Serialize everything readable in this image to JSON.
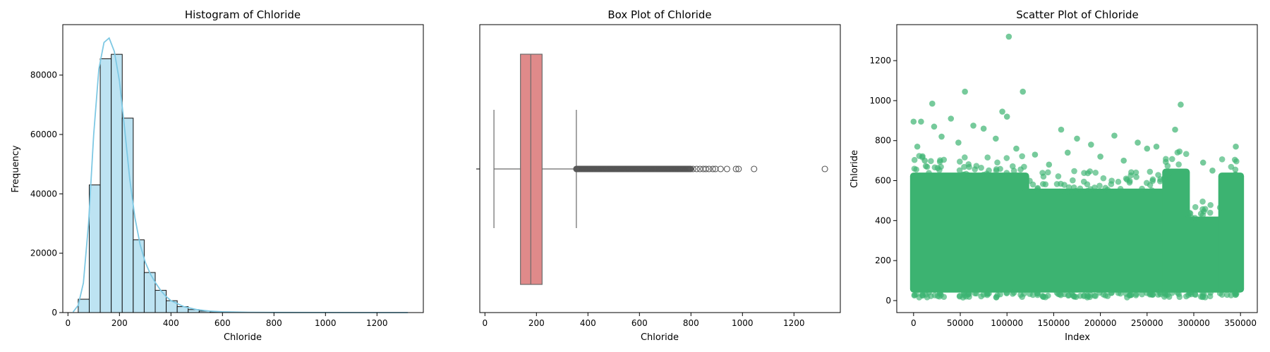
{
  "colors": {
    "hist_fill": "#bde3f2",
    "hist_edge": "#111111",
    "kde_line": "#7ec8e3",
    "box_fill": "#e08a8a",
    "box_edge": "#6b6b6b",
    "scatter": "#3cb371"
  },
  "chart_data": [
    {
      "type": "bar",
      "subtype": "histogram",
      "title": "Histogram of Chloride",
      "xlabel": "Chloride",
      "ylabel": "Frequency",
      "xlim": [
        -20,
        1380
      ],
      "ylim": [
        0,
        97000
      ],
      "xticks": [
        0,
        200,
        400,
        600,
        800,
        1000,
        1200
      ],
      "yticks": [
        0,
        20000,
        40000,
        60000,
        80000
      ],
      "bin_start": 40,
      "bin_width": 42.7,
      "values": [
        4500,
        43000,
        85500,
        87000,
        65500,
        24500,
        13500,
        7500,
        4000,
        2000,
        1000,
        500,
        300,
        150,
        100,
        60,
        40,
        25,
        15,
        10,
        8,
        5,
        4,
        3,
        2,
        2,
        1,
        1,
        1,
        1
      ],
      "kde": {
        "x": [
          20,
          40,
          60,
          80,
          100,
          120,
          140,
          160,
          180,
          200,
          220,
          240,
          260,
          280,
          300,
          320,
          340,
          360,
          380,
          400,
          450,
          500,
          550,
          600,
          700,
          800,
          1000,
          1200,
          1320
        ],
        "y": [
          200,
          2500,
          10000,
          30000,
          60000,
          82000,
          91000,
          92500,
          88000,
          78000,
          62000,
          45000,
          32000,
          23000,
          17000,
          13000,
          10000,
          7500,
          5500,
          4000,
          2000,
          1000,
          500,
          250,
          100,
          50,
          15,
          5,
          0
        ]
      }
    },
    {
      "type": "box",
      "title": "Box Plot of Chloride",
      "xlabel": "Chloride",
      "ylabel": "",
      "xlim": [
        -20,
        1380
      ],
      "xticks": [
        0,
        200,
        400,
        600,
        800,
        1000,
        1200
      ],
      "whisker_low": 35,
      "q1": 138,
      "median": 178,
      "q3": 222,
      "whisker_high": 355,
      "outliers_dense_range": [
        355,
        800
      ],
      "outliers": [
        808,
        822,
        835,
        848,
        858,
        870,
        885,
        895,
        915,
        940,
        975,
        985,
        1045,
        1320
      ]
    },
    {
      "type": "scatter",
      "title": "Scatter Plot of Chloride",
      "xlabel": "Index",
      "ylabel": "Chloride",
      "xlim": [
        -18000,
        368000
      ],
      "ylim": [
        -60,
        1380
      ],
      "xticks": [
        0,
        50000,
        100000,
        150000,
        200000,
        250000,
        300000,
        350000
      ],
      "yticks": [
        0,
        200,
        400,
        600,
        800,
        1000,
        1200
      ],
      "n_points": 350000,
      "bands": [
        {
          "x": [
            0,
            120000
          ],
          "y": [
            40,
            640
          ]
        },
        {
          "x": [
            120000,
            270000
          ],
          "y": [
            40,
            560
          ]
        },
        {
          "x": [
            270000,
            292000
          ],
          "y": [
            40,
            660
          ]
        },
        {
          "x": [
            292000,
            330000
          ],
          "y": [
            40,
            420
          ]
        },
        {
          "x": [
            330000,
            350000
          ],
          "y": [
            40,
            640
          ]
        }
      ],
      "outliers": [
        [
          102000,
          1320
        ],
        [
          55000,
          1045
        ],
        [
          117000,
          1045
        ],
        [
          20000,
          985
        ],
        [
          95000,
          945
        ],
        [
          286000,
          980
        ],
        [
          0,
          895
        ],
        [
          8000,
          895
        ],
        [
          40000,
          910
        ],
        [
          22000,
          870
        ],
        [
          64000,
          875
        ],
        [
          100000,
          920
        ],
        [
          158000,
          855
        ],
        [
          280000,
          855
        ],
        [
          345000,
          770
        ],
        [
          215000,
          825
        ],
        [
          175000,
          810
        ],
        [
          310000,
          690
        ],
        [
          240000,
          790
        ],
        [
          190000,
          780
        ],
        [
          30000,
          820
        ],
        [
          75000,
          860
        ],
        [
          130000,
          730
        ],
        [
          260000,
          770
        ],
        [
          4000,
          770
        ],
        [
          12000,
          700
        ],
        [
          48000,
          790
        ],
        [
          88000,
          810
        ],
        [
          145000,
          680
        ],
        [
          200000,
          720
        ],
        [
          225000,
          700
        ],
        [
          250000,
          760
        ],
        [
          320000,
          650
        ],
        [
          110000,
          760
        ],
        [
          165000,
          740
        ]
      ]
    }
  ]
}
